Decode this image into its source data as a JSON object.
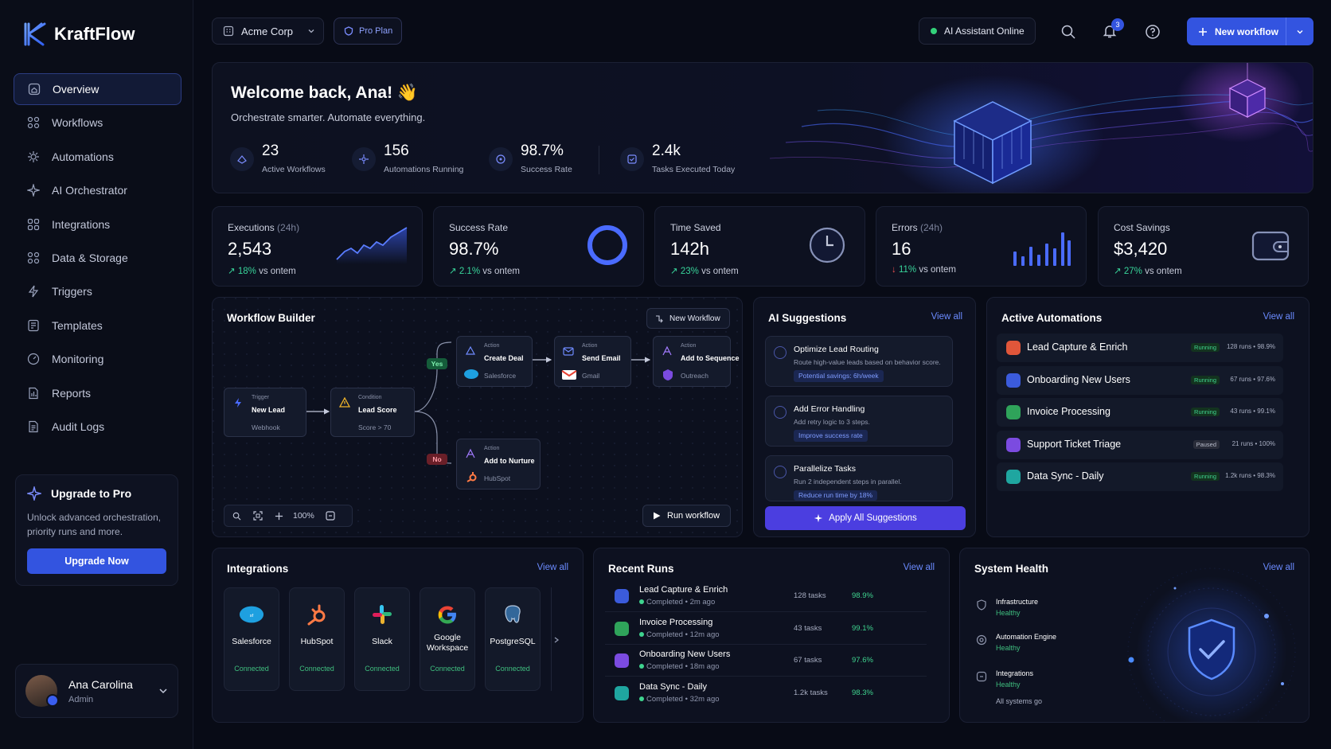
{
  "brand": {
    "name": "KraftFlow"
  },
  "sidebar": {
    "items": [
      {
        "label": "Overview",
        "icon": "home-icon"
      },
      {
        "label": "Workflows",
        "icon": "workflow-icon"
      },
      {
        "label": "Automations",
        "icon": "gear-icon"
      },
      {
        "label": "AI Orchestrator",
        "icon": "sparkle-icon"
      },
      {
        "label": "Integrations",
        "icon": "grid-icon"
      },
      {
        "label": "Data & Storage",
        "icon": "database-icon"
      },
      {
        "label": "Triggers",
        "icon": "bolt-icon"
      },
      {
        "label": "Templates",
        "icon": "template-icon"
      },
      {
        "label": "Monitoring",
        "icon": "gauge-icon"
      },
      {
        "label": "Reports",
        "icon": "report-icon"
      },
      {
        "label": "Audit Logs",
        "icon": "log-icon"
      }
    ],
    "upgrade": {
      "title": "Upgrade to Pro",
      "desc": "Unlock advanced orchestration, priority runs and more.",
      "button": "Upgrade Now"
    },
    "user": {
      "name": "Ana Carolina",
      "role": "Admin"
    }
  },
  "topbar": {
    "org": "Acme Corp",
    "plan": "Pro Plan",
    "assistant_status": "AI Assistant Online",
    "notifications": "3",
    "new_workflow": "New workflow"
  },
  "hero": {
    "title": "Welcome back, Ana! 👋",
    "subtitle": "Orchestrate smarter. Automate everything.",
    "stats": [
      {
        "value": "23",
        "label": "Active Workflows"
      },
      {
        "value": "156",
        "label": "Automations Running"
      },
      {
        "value": "98.7%",
        "label": "Success Rate"
      },
      {
        "value": "2.4k",
        "label": "Tasks Executed Today"
      }
    ]
  },
  "kpis": [
    {
      "label": "Executions",
      "suffix": "(24h)",
      "value": "2,543",
      "delta": "18%",
      "delta_text": "vs ontem"
    },
    {
      "label": "Success Rate",
      "suffix": "",
      "value": "98.7%",
      "delta": "2.1%",
      "delta_text": "vs ontem"
    },
    {
      "label": "Time Saved",
      "suffix": "",
      "value": "142h",
      "delta": "23%",
      "delta_text": "vs ontem"
    },
    {
      "label": "Errors",
      "suffix": "(24h)",
      "value": "16",
      "delta": "11%",
      "delta_text": "vs ontem"
    },
    {
      "label": "Cost Savings",
      "suffix": "",
      "value": "$3,420",
      "delta": "27%",
      "delta_text": "vs ontem"
    }
  ],
  "builder": {
    "title": "Workflow Builder",
    "new_button": "New Workflow",
    "zoom": "100%",
    "run_button": "Run workflow",
    "yes_label": "Yes",
    "no_label": "No",
    "nodes": {
      "trigger": {
        "kind": "Trigger",
        "title": "New Lead",
        "sub": "Webhook"
      },
      "condition": {
        "kind": "Condition",
        "title": "Lead Score",
        "sub": "Score > 70"
      },
      "deal": {
        "kind": "Action",
        "title": "Create Deal",
        "sub": "Salesforce"
      },
      "email": {
        "kind": "Action",
        "title": "Send Email",
        "sub": "Gmail"
      },
      "sequence": {
        "kind": "Action",
        "title": "Add to Sequence",
        "sub": "Outreach"
      },
      "nurture": {
        "kind": "Action",
        "title": "Add to Nurture",
        "sub": "HubSpot"
      }
    }
  },
  "suggestions": {
    "title": "AI Suggestions",
    "view_all": "View all",
    "items": [
      {
        "title": "Optimize Lead Routing",
        "desc": "Route high-value leads based on behavior score.",
        "tag": "Potential savings: 6h/week"
      },
      {
        "title": "Add Error Handling",
        "desc": "Add retry logic to 3 steps.",
        "tag": "Improve success rate"
      },
      {
        "title": "Parallelize Tasks",
        "desc": "Run 2 independent steps in parallel.",
        "tag": "Reduce run time by 18%"
      }
    ],
    "apply": "Apply All Suggestions"
  },
  "automations": {
    "title": "Active Automations",
    "view_all": "View all",
    "items": [
      {
        "name": "Lead Capture & Enrich",
        "status": "Running",
        "meta": "128 runs • 98.9%",
        "color": "#e0563a"
      },
      {
        "name": "Onboarding New Users",
        "status": "Running",
        "meta": "67 runs • 97.6%",
        "color": "#3b5bdb"
      },
      {
        "name": "Invoice Processing",
        "status": "Running",
        "meta": "43 runs • 99.1%",
        "color": "#2fa35a"
      },
      {
        "name": "Support Ticket Triage",
        "status": "Paused",
        "meta": "21 runs • 100%",
        "color": "#7b4be0"
      },
      {
        "name": "Data Sync - Daily",
        "status": "Running",
        "meta": "1.2k runs • 98.3%",
        "color": "#1fa6a0"
      }
    ]
  },
  "integrations": {
    "title": "Integrations",
    "view_all": "View all",
    "items": [
      {
        "name": "Salesforce",
        "status": "Connected"
      },
      {
        "name": "HubSpot",
        "status": "Connected"
      },
      {
        "name": "Slack",
        "status": "Connected"
      },
      {
        "name": "Google Workspace",
        "status": "Connected"
      },
      {
        "name": "PostgreSQL",
        "status": "Connected"
      }
    ]
  },
  "runs": {
    "title": "Recent Runs",
    "view_all": "View all",
    "items": [
      {
        "name": "Lead Capture & Enrich",
        "status": "Completed",
        "time": "2m ago",
        "tasks": "128 tasks",
        "pct": "98.9%",
        "color": "#3b5bdb"
      },
      {
        "name": "Invoice Processing",
        "status": "Completed",
        "time": "12m ago",
        "tasks": "43 tasks",
        "pct": "99.1%",
        "color": "#2fa35a"
      },
      {
        "name": "Onboarding New Users",
        "status": "Completed",
        "time": "18m ago",
        "tasks": "67 tasks",
        "pct": "97.6%",
        "color": "#7b4be0"
      },
      {
        "name": "Data Sync - Daily",
        "status": "Completed",
        "time": "32m ago",
        "tasks": "1.2k tasks",
        "pct": "98.3%",
        "color": "#1fa6a0"
      }
    ]
  },
  "health": {
    "title": "System Health",
    "view_all": "View all",
    "items": [
      {
        "name": "Infrastructure",
        "status": "Healthy"
      },
      {
        "name": "Automation Engine",
        "status": "Healthy"
      },
      {
        "name": "Integrations",
        "status": "Healthy"
      }
    ],
    "summary": "All systems go"
  },
  "colors": {
    "accent": "#3354e0",
    "success": "#38d49a",
    "danger": "#f05252",
    "bg": "#080b16"
  }
}
